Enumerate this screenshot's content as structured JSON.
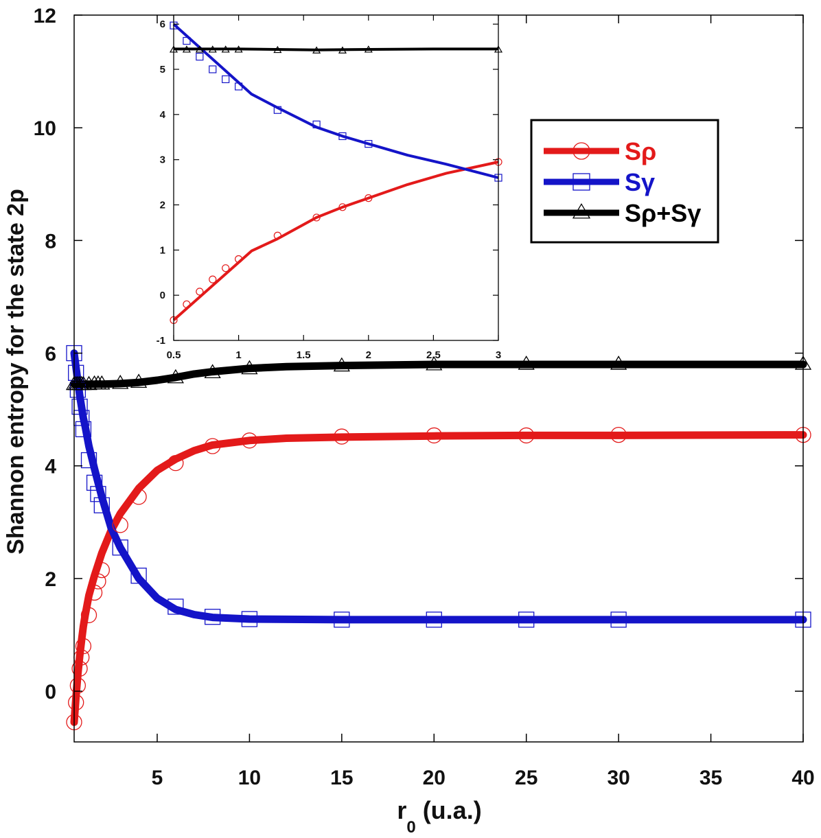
{
  "chart_data": [
    {
      "id": "main",
      "type": "line",
      "xlabel_main": "r",
      "xlabel_sub": "0",
      "xlabel_unit": " (u.a.)",
      "ylabel": "Shannon entropy for the state 2p",
      "xlim": [
        0.5,
        40
      ],
      "ylim": [
        -0.9,
        12
      ],
      "xticks": [
        5,
        10,
        15,
        20,
        25,
        30,
        35,
        40
      ],
      "xtick_labels": [
        "5",
        "10",
        "15",
        "20",
        "25",
        "30",
        "35",
        "40"
      ],
      "yticks": [
        0,
        2,
        4,
        6,
        8,
        10,
        12
      ],
      "ytick_labels": [
        "0",
        "2",
        "4",
        "6",
        "8",
        "10",
        "12"
      ],
      "series": [
        {
          "name": "Sρ",
          "color": "#e31a1a",
          "marker": "circle",
          "line_x": [
            0.5,
            0.6,
            0.7,
            0.8,
            0.9,
            1.0,
            1.1,
            1.3,
            1.6,
            2.0,
            2.5,
            3,
            4,
            5,
            6,
            7,
            8,
            10,
            12,
            15,
            20,
            25,
            30,
            40
          ],
          "line_y": [
            -0.55,
            -0.1,
            0.3,
            0.62,
            0.9,
            1.15,
            1.35,
            1.7,
            2.05,
            2.45,
            2.85,
            3.15,
            3.6,
            3.92,
            4.12,
            4.27,
            4.37,
            4.45,
            4.49,
            4.51,
            4.53,
            4.54,
            4.54,
            4.55
          ],
          "marker_x": [
            0.5,
            0.6,
            0.7,
            0.8,
            0.9,
            1.0,
            1.3,
            1.6,
            1.8,
            2.0,
            3.0,
            4,
            6,
            8,
            10,
            15,
            20,
            25,
            30,
            40
          ],
          "marker_y": [
            -0.55,
            -0.2,
            0.1,
            0.4,
            0.6,
            0.8,
            1.35,
            1.75,
            1.95,
            2.15,
            2.95,
            3.45,
            4.05,
            4.35,
            4.45,
            4.52,
            4.54,
            4.54,
            4.55,
            4.55
          ]
        },
        {
          "name": "Sγ",
          "color": "#1414c8",
          "marker": "square",
          "line_x": [
            0.5,
            0.6,
            0.7,
            0.8,
            1.0,
            1.1,
            1.3,
            1.6,
            2.0,
            2.5,
            3,
            4,
            5,
            6,
            7,
            8,
            10,
            15,
            20,
            25,
            30,
            40
          ],
          "line_y": [
            6.0,
            5.75,
            5.5,
            5.25,
            4.85,
            4.7,
            4.35,
            3.95,
            3.45,
            2.9,
            2.55,
            2.0,
            1.65,
            1.45,
            1.36,
            1.31,
            1.28,
            1.27,
            1.27,
            1.27,
            1.27,
            1.27
          ],
          "marker_x": [
            0.5,
            0.6,
            0.7,
            0.8,
            0.9,
            1.0,
            1.3,
            1.6,
            1.8,
            2.0,
            3,
            4,
            6,
            8,
            10,
            15,
            20,
            25,
            30,
            40
          ],
          "marker_y": [
            6.0,
            5.65,
            5.35,
            5.05,
            4.85,
            4.65,
            4.1,
            3.7,
            3.5,
            3.3,
            2.55,
            2.05,
            1.5,
            1.32,
            1.28,
            1.27,
            1.27,
            1.27,
            1.27,
            1.27
          ]
        },
        {
          "name": "Sρ+Sγ",
          "color": "#000000",
          "marker": "triangle",
          "line_x": [
            0.5,
            1.0,
            2.0,
            3,
            4,
            5,
            6,
            7,
            8,
            10,
            12,
            15,
            20,
            25,
            30,
            40
          ],
          "line_y": [
            5.45,
            5.45,
            5.45,
            5.46,
            5.48,
            5.52,
            5.57,
            5.63,
            5.67,
            5.73,
            5.76,
            5.78,
            5.8,
            5.8,
            5.8,
            5.8
          ],
          "marker_x": [
            0.5,
            0.6,
            0.7,
            0.8,
            0.9,
            1.0,
            1.3,
            1.6,
            1.8,
            2.0,
            3,
            4,
            6,
            8,
            10,
            15,
            20,
            25,
            30,
            40
          ],
          "marker_y": [
            5.44,
            5.44,
            5.44,
            5.44,
            5.44,
            5.44,
            5.44,
            5.45,
            5.45,
            5.45,
            5.46,
            5.48,
            5.56,
            5.65,
            5.72,
            5.77,
            5.79,
            5.8,
            5.8,
            5.8
          ]
        }
      ]
    },
    {
      "id": "inset",
      "type": "line",
      "xlim": [
        0.5,
        3
      ],
      "ylim": [
        -1,
        6.2
      ],
      "xticks": [
        0.5,
        1,
        1.5,
        2,
        2.5,
        3
      ],
      "xtick_labels": [
        "0.5",
        "1",
        "1.5",
        "2",
        "2.5",
        "3"
      ],
      "yticks": [
        -1,
        0,
        1,
        2,
        3,
        4,
        5,
        6
      ],
      "ytick_labels": [
        "-1",
        "0",
        "1",
        "2",
        "3",
        "4",
        "5",
        "6"
      ],
      "series": [
        {
          "name": "Sρ",
          "color": "#e31a1a",
          "marker": "circle",
          "line_x": [
            0.5,
            1.1,
            1.3,
            1.6,
            1.8,
            2.0,
            2.3,
            2.6,
            3.0
          ],
          "line_y": [
            -0.55,
            0.98,
            1.25,
            1.72,
            1.95,
            2.15,
            2.45,
            2.7,
            2.95
          ],
          "marker_x": [
            0.5,
            0.6,
            0.7,
            0.8,
            0.9,
            1.0,
            1.3,
            1.6,
            1.8,
            2.0,
            3.0
          ],
          "marker_y": [
            -0.55,
            -0.2,
            0.08,
            0.35,
            0.6,
            0.8,
            1.32,
            1.72,
            1.95,
            2.15,
            2.95
          ]
        },
        {
          "name": "Sγ",
          "color": "#1414c8",
          "marker": "square",
          "line_x": [
            0.5,
            1.1,
            1.3,
            1.6,
            1.8,
            2.0,
            2.3,
            2.6,
            3.0
          ],
          "line_y": [
            6.0,
            4.45,
            4.15,
            3.72,
            3.52,
            3.35,
            3.1,
            2.9,
            2.6
          ],
          "marker_x": [
            0.5,
            0.6,
            0.7,
            0.8,
            0.9,
            1.0,
            1.3,
            1.6,
            1.8,
            2.0,
            3.0
          ],
          "marker_y": [
            5.97,
            5.63,
            5.28,
            5.0,
            4.78,
            4.62,
            4.1,
            3.78,
            3.52,
            3.35,
            2.6
          ]
        },
        {
          "name": "Sρ+Sγ",
          "color": "#000000",
          "marker": "triangle",
          "line_x": [
            0.5,
            1.0,
            1.6,
            2.0,
            2.5,
            3.0
          ],
          "line_y": [
            5.45,
            5.45,
            5.43,
            5.44,
            5.45,
            5.45
          ],
          "marker_x": [
            0.5,
            0.6,
            0.7,
            0.8,
            0.9,
            1.0,
            1.3,
            1.6,
            1.8,
            2.0,
            3.0
          ],
          "marker_y": [
            5.43,
            5.43,
            5.43,
            5.43,
            5.43,
            5.43,
            5.42,
            5.41,
            5.41,
            5.43,
            5.43
          ]
        }
      ]
    }
  ],
  "legend": {
    "items": [
      "Sρ",
      "Sγ",
      "Sρ+Sγ"
    ],
    "colors": [
      "#e31a1a",
      "#1414c8",
      "#000000"
    ],
    "markers": [
      "circle",
      "square",
      "triangle"
    ],
    "placement": "right, inside upper area"
  }
}
